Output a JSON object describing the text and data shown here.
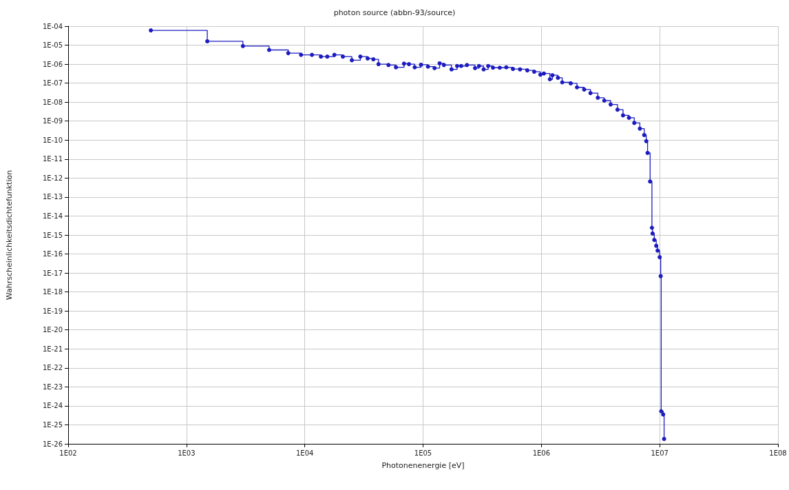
{
  "chart_data": {
    "type": "step",
    "title": "photon source (abbn-93/source)",
    "xlabel": "Photonenenergie [eV]",
    "ylabel": "Wahrscheinlichkeitsdichtefunktion",
    "log": "xy",
    "grid": true,
    "marker": "circle",
    "line_style": "solid",
    "xlim": [
      100,
      100000000
    ],
    "xticks": [
      {
        "value": 100,
        "label": "1E02"
      },
      {
        "value": 1000,
        "label": "1E03"
      },
      {
        "value": 10000,
        "label": "1E04"
      },
      {
        "value": 100000,
        "label": "1E05"
      },
      {
        "value": 1000000,
        "label": "1E06"
      },
      {
        "value": 10000000,
        "label": "1E07"
      },
      {
        "value": 100000000,
        "label": "1E08"
      }
    ],
    "ylim": [
      1e-26,
      0.0001
    ],
    "yticks": [
      {
        "value": 0.0001,
        "label": "1E-04"
      },
      {
        "value": 1e-05,
        "label": "1E-05"
      },
      {
        "value": 1e-06,
        "label": "1E-06"
      },
      {
        "value": 1e-07,
        "label": "1E-07"
      },
      {
        "value": 1e-08,
        "label": "1E-08"
      },
      {
        "value": 1e-09,
        "label": "1E-09"
      },
      {
        "value": 1e-10,
        "label": "1E-10"
      },
      {
        "value": 1e-11,
        "label": "1E-11"
      },
      {
        "value": 1e-12,
        "label": "1E-12"
      },
      {
        "value": 1e-13,
        "label": "1E-13"
      },
      {
        "value": 1e-14,
        "label": "1E-14"
      },
      {
        "value": 1e-15,
        "label": "1E-15"
      },
      {
        "value": 1e-16,
        "label": "1E-16"
      },
      {
        "value": 1e-17,
        "label": "1E-17"
      },
      {
        "value": 1e-18,
        "label": "1E-18"
      },
      {
        "value": 1e-19,
        "label": "1E-19"
      },
      {
        "value": 1e-20,
        "label": "1E-20"
      },
      {
        "value": 1e-21,
        "label": "1E-21"
      },
      {
        "value": 1e-22,
        "label": "1E-22"
      },
      {
        "value": 1e-23,
        "label": "1E-23"
      },
      {
        "value": 1e-24,
        "label": "1E-24"
      },
      {
        "value": 1e-25,
        "label": "1E-25"
      },
      {
        "value": 1e-26,
        "label": "1E-26"
      }
    ],
    "series": [
      {
        "color": "#1c1cc0",
        "x": [
          500,
          1500,
          3000,
          5000,
          7250,
          9300,
          11500,
          13700,
          15500,
          17800,
          21000,
          25000,
          29500,
          34000,
          38000,
          42000,
          51000,
          59000,
          69000,
          76000,
          85000,
          96000,
          110000,
          125000,
          138000,
          150000,
          174000,
          194000,
          210000,
          235000,
          275000,
          297000,
          325000,
          355000,
          390000,
          445000,
          505000,
          575000,
          660000,
          760000,
          870000,
          980000,
          1050000,
          1180000,
          1240000,
          1380000,
          1500000,
          1770000,
          2000000,
          2300000,
          2600000,
          3000000,
          3400000,
          3850000,
          4400000,
          4900000,
          5500000,
          6100000,
          6800000,
          7400000,
          7700000,
          7900000,
          8300000,
          8600000,
          8700000,
          9000000,
          9350000,
          9600000,
          10000000,
          10200000,
          10300000,
          10700000,
          10900000
        ],
        "values": [
          6e-05,
          1.6e-05,
          9e-06,
          5.6e-06,
          3.8e-06,
          3.1e-06,
          3.1e-06,
          2.5e-06,
          2.5e-06,
          3.1e-06,
          2.5e-06,
          1.6e-06,
          2.5e-06,
          2e-06,
          1.8e-06,
          1e-06,
          9e-07,
          6.8e-07,
          1.07e-06,
          1e-06,
          6.8e-07,
          9.3e-07,
          7.4e-07,
          6.2e-07,
          1.1e-06,
          9e-07,
          5.3e-07,
          8e-07,
          8e-07,
          9e-07,
          6.2e-07,
          8e-07,
          5.3e-07,
          8e-07,
          6.5e-07,
          6.5e-07,
          6.8e-07,
          5.6e-07,
          5.3e-07,
          4.7e-07,
          4e-07,
          2.8e-07,
          3.2e-07,
          1.6e-07,
          2.6e-07,
          1.9e-07,
          1.1e-07,
          9.8e-08,
          6e-08,
          4.6e-08,
          3e-08,
          1.7e-08,
          1.2e-08,
          7.5e-09,
          4e-09,
          2e-09,
          1.5e-09,
          8e-10,
          4e-10,
          1.85e-10,
          8.8e-11,
          2.1e-11,
          6.6e-13,
          2.4e-15,
          1.2e-15,
          5.5e-16,
          2.7e-16,
          1.5e-16,
          6.8e-17,
          6.8e-18,
          5.2e-25,
          3.5e-25,
          1.8e-26
        ]
      }
    ]
  }
}
